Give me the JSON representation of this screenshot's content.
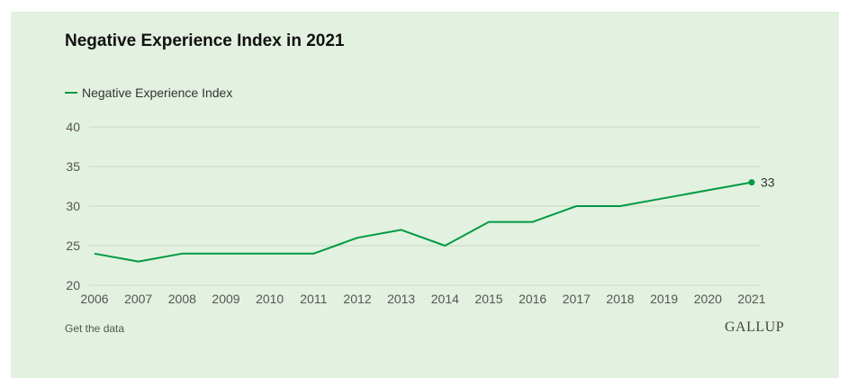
{
  "colors": {
    "background": "#e3f1e0",
    "series": "#009a44",
    "grid": "#c9d6c5"
  },
  "chart_data": {
    "type": "line",
    "title": "Negative Experience Index in 2021",
    "xlabel": "",
    "ylabel": "",
    "x": [
      2006,
      2007,
      2008,
      2009,
      2010,
      2011,
      2012,
      2013,
      2014,
      2015,
      2016,
      2017,
      2018,
      2019,
      2020,
      2021
    ],
    "series": [
      {
        "name": "Negative Experience Index",
        "values": [
          24,
          23,
          24,
          24,
          24,
          24,
          26,
          27,
          25,
          28,
          28,
          30,
          30,
          31,
          32,
          33
        ]
      }
    ],
    "end_label": "33",
    "ylim": [
      20,
      40
    ],
    "yticks": [
      20,
      25,
      30,
      35,
      40
    ],
    "grid": true,
    "legend": "top-left"
  },
  "footer": {
    "data_link": "Get the data",
    "brand": "GALLUP"
  }
}
